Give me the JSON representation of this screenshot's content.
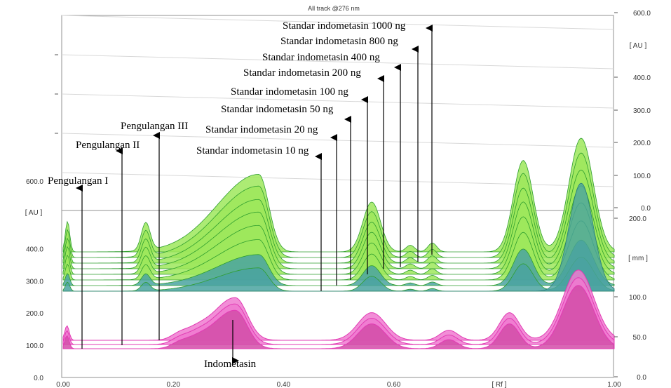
{
  "chart_data": {
    "type": "area",
    "title": "All track @276 nm",
    "view": "3D overlay of TLC densitogram tracks",
    "x_axis": {
      "label": "[ Rf ]",
      "ticks": [
        "0.00",
        "0.20",
        "0.40",
        "0.60",
        "1.00"
      ],
      "tick_values": [
        0.0,
        0.2,
        0.4,
        0.6,
        1.0
      ],
      "range": [
        0.0,
        1.0
      ]
    },
    "y_axis_left_upper": {
      "label": "[ AU ]",
      "ticks": [
        "600.0"
      ]
    },
    "y_axis_left_lower": {
      "ticks": [
        "400.0",
        "300.0",
        "200.0",
        "100.0",
        "0.0"
      ],
      "tick_values": [
        400,
        300,
        200,
        100,
        0
      ],
      "range": [
        0,
        600
      ]
    },
    "y_axis_right_upper": {
      "label": "[ AU ]",
      "ticks": [
        "600.0",
        "400.0",
        "300.0",
        "200.0",
        "100.0",
        "0.0"
      ],
      "tick_values": [
        600,
        400,
        300,
        200,
        100,
        0
      ]
    },
    "y_axis_right_lower": {
      "label": "[ mm ]",
      "ticks": [
        "200.0",
        "100.0",
        "50.0",
        "0.0"
      ],
      "tick_values": [
        200,
        100,
        50,
        0
      ]
    },
    "sample_peaks_rf": [
      0.01,
      0.21,
      0.31,
      0.56,
      0.7,
      0.81,
      0.93
    ],
    "standard_peaks_rf": [
      0.01,
      0.15,
      0.36,
      0.56,
      0.63,
      0.82,
      0.94
    ],
    "series": [
      {
        "name": "Standar indometasin 10 ng",
        "group": "standard",
        "scale": 0.3
      },
      {
        "name": "Standar indometasin 20 ng",
        "group": "standard",
        "scale": 0.4
      },
      {
        "name": "Standar indometasin 50 ng",
        "group": "standard",
        "scale": 0.52
      },
      {
        "name": "Standar indometasin 100 ng",
        "group": "standard",
        "scale": 0.63
      },
      {
        "name": "Standar indometasin 200 ng",
        "group": "standard",
        "scale": 0.73
      },
      {
        "name": "Standar indometasin 400 ng",
        "group": "standard",
        "scale": 0.82
      },
      {
        "name": "Standar indometasin 800 ng",
        "group": "standard",
        "scale": 0.92
      },
      {
        "name": "Standar indometasin 1000 ng",
        "group": "standard",
        "scale": 1.0
      },
      {
        "name": "Pengulangan I",
        "group": "sample",
        "scale": 0.9
      },
      {
        "name": "Pengulangan II",
        "group": "sample",
        "scale": 0.95
      },
      {
        "name": "Pengulangan III",
        "group": "sample",
        "scale": 1.0
      }
    ],
    "annotations": {
      "Indometasin": "Indometasin"
    },
    "colors": {
      "standard_fill": "#9ee85c",
      "standard_edge": "#2e9e2e",
      "teal_fill": "#4aa3a0",
      "sample_fill": "#e23bb4",
      "sample_light": "#f07ad0",
      "grid": "#909090"
    },
    "grid": false,
    "legend": "none"
  }
}
